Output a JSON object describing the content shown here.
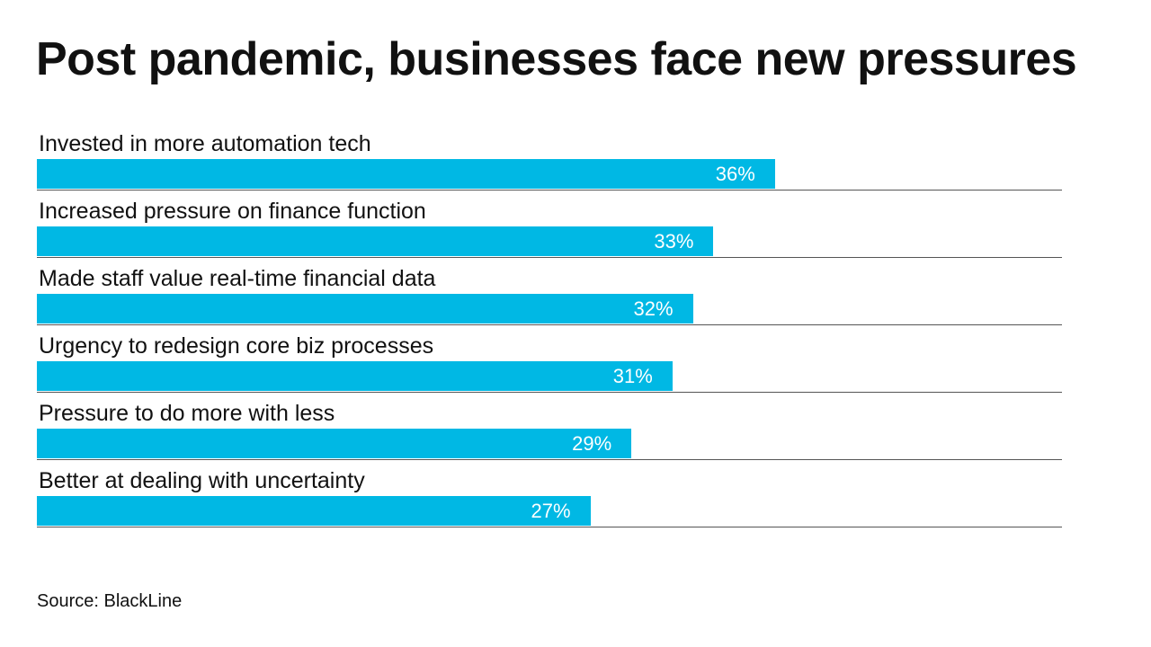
{
  "chart_data": {
    "type": "bar",
    "orientation": "horizontal",
    "title": "Post pandemic, businesses face new pressures",
    "categories": [
      "Invested in more automation tech",
      "Increased pressure on finance function",
      "Made staff value real-time financial data",
      "Urgency to redesign core biz processes",
      "Pressure to do more with less",
      "Better at dealing with uncertainty"
    ],
    "values": [
      36,
      33,
      32,
      31,
      29,
      27
    ],
    "value_labels": [
      "36%",
      "33%",
      "32%",
      "31%",
      "29%",
      "27%"
    ],
    "xlim": [
      0,
      50
    ],
    "grid": false,
    "bar_color": "#00b8e4",
    "source": "Source: BlackLine"
  }
}
